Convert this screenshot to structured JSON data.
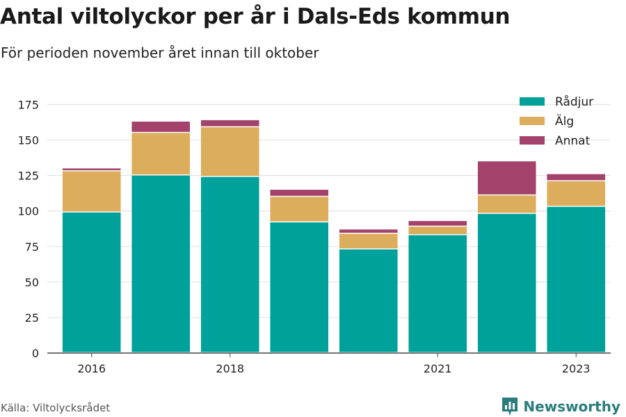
{
  "header": {
    "title": "Antal viltolyckor per år i Dals-Eds kommun",
    "subtitle": "För perioden november året innan till oktober"
  },
  "footer": {
    "source": "Källa: Viltolycksrådet",
    "brand": "Newsworthy",
    "brand_icon": "bar-chart-speech-icon"
  },
  "colors": {
    "radjur": "#00a19a",
    "alg": "#dbad5c",
    "annat": "#a3426b",
    "brand": "#2b7d7d"
  },
  "chart_data": {
    "type": "bar",
    "stacked": true,
    "title": "Antal viltolyckor per år i Dals-Eds kommun",
    "subtitle": "För perioden november året innan till oktober",
    "categories": [
      2016,
      2017,
      2018,
      2019,
      2020,
      2021,
      2022,
      2023
    ],
    "x_tick_labels": [
      "2016",
      "",
      "2018",
      "",
      "",
      "2021",
      "",
      "2023"
    ],
    "series": [
      {
        "name": "Rådjur",
        "color": "#00a19a",
        "values": [
          99,
          125,
          124,
          92,
          73,
          83,
          98,
          103
        ]
      },
      {
        "name": "Älg",
        "color": "#dbad5c",
        "values": [
          29,
          30,
          35,
          18,
          11,
          6,
          13,
          18
        ]
      },
      {
        "name": "Annat",
        "color": "#a3426b",
        "values": [
          2,
          8,
          5,
          5,
          3,
          4,
          24,
          5
        ]
      }
    ],
    "y_ticks": [
      0,
      25,
      50,
      75,
      100,
      125,
      150,
      175
    ],
    "ylim": [
      0,
      185
    ],
    "grid": true,
    "legend_position": "top-right",
    "xlabel": "",
    "ylabel": ""
  }
}
